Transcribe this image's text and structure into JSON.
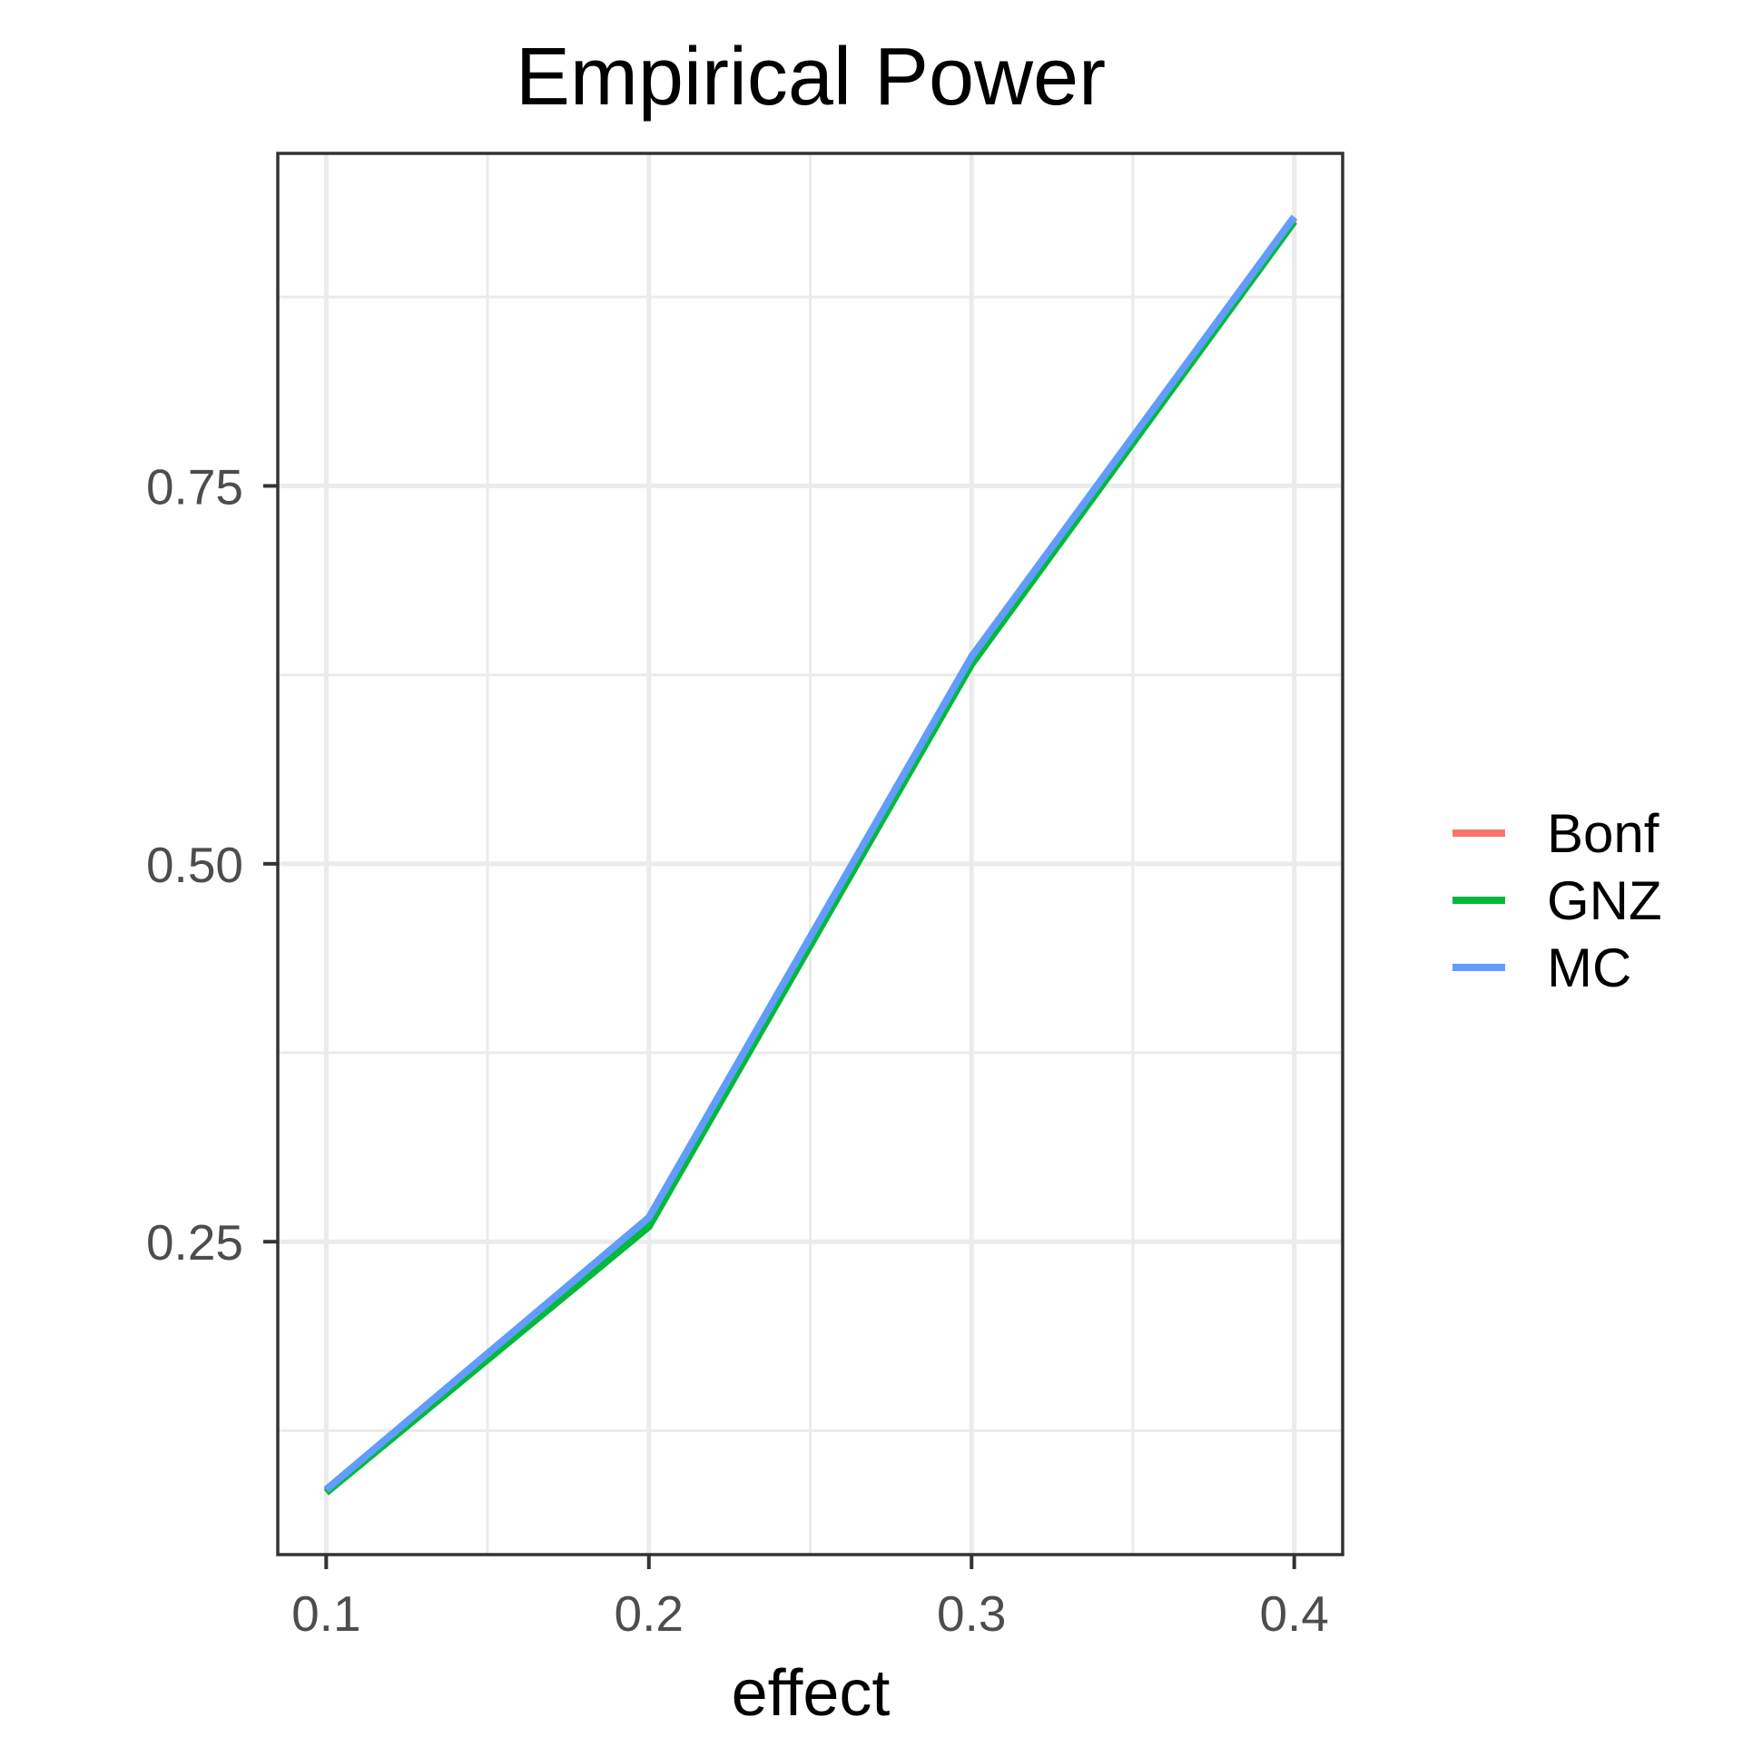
{
  "chart_data": {
    "type": "line",
    "title": "Empirical Power",
    "xlabel": "effect",
    "ylabel": "",
    "x": [
      0.1,
      0.2,
      0.3,
      0.4
    ],
    "xlim": [
      0.085,
      0.415
    ],
    "ylim": [
      0.043,
      0.97
    ],
    "x_ticks": [
      0.1,
      0.2,
      0.3,
      0.4
    ],
    "x_tick_labels": [
      "0.1",
      "0.2",
      "0.3",
      "0.4"
    ],
    "x_minor_ticks": [
      0.15,
      0.25,
      0.35
    ],
    "y_ticks": [
      0.25,
      0.5,
      0.75
    ],
    "y_tick_labels": [
      "0.25",
      "0.50",
      "0.75"
    ],
    "y_minor_ticks": [
      0.125,
      0.375,
      0.625,
      0.875
    ],
    "grid": true,
    "legend_position": "right",
    "series": [
      {
        "name": "Bonf",
        "color": "#F8766D",
        "values": [
          0.085,
          0.265,
          0.636,
          0.927
        ]
      },
      {
        "name": "GNZ",
        "color": "#00BA38",
        "values": [
          0.084,
          0.26,
          0.632,
          0.925
        ]
      },
      {
        "name": "MC",
        "color": "#619CFF",
        "values": [
          0.086,
          0.266,
          0.637,
          0.928
        ]
      }
    ]
  }
}
